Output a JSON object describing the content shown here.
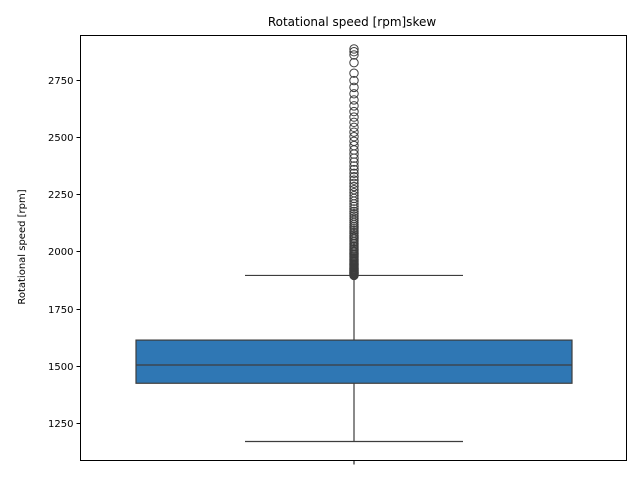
{
  "chart_data": {
    "type": "box",
    "title": "Rotational speed [rpm]skew",
    "xlabel": "",
    "ylabel": "Rotational speed [rpm]",
    "ylim": [
      1085,
      2945
    ],
    "yticks": [
      1250,
      1500,
      1750,
      2000,
      2250,
      2500,
      2750
    ],
    "grid": false,
    "box_color": "#2f77b4",
    "line_color": "#3d3d3d",
    "box": {
      "lower_whisker": 1168,
      "q1": 1423,
      "median": 1503,
      "q3": 1612,
      "upper_whisker": 1895
    },
    "outliers": [
      1895,
      1897,
      1900,
      1903,
      1905,
      1908,
      1911,
      1914,
      1917,
      1920,
      1923,
      1926,
      1930,
      1934,
      1938,
      1942,
      1946,
      1950,
      1955,
      1960,
      1965,
      1970,
      1975,
      1980,
      1986,
      1992,
      1998,
      2004,
      2010,
      2016,
      2022,
      2028,
      2035,
      2042,
      2049,
      2056,
      2063,
      2070,
      2078,
      2086,
      2094,
      2102,
      2110,
      2118,
      2127,
      2136,
      2145,
      2155,
      2165,
      2175,
      2186,
      2197,
      2208,
      2220,
      2232,
      2244,
      2257,
      2270,
      2284,
      2298,
      2312,
      2327,
      2342,
      2358,
      2374,
      2391,
      2408,
      2426,
      2444,
      2463,
      2482,
      2502,
      2522,
      2543,
      2565,
      2588,
      2612,
      2637,
      2663,
      2690,
      2718,
      2748,
      2780,
      2826,
      2860,
      2874,
      2886
    ]
  }
}
